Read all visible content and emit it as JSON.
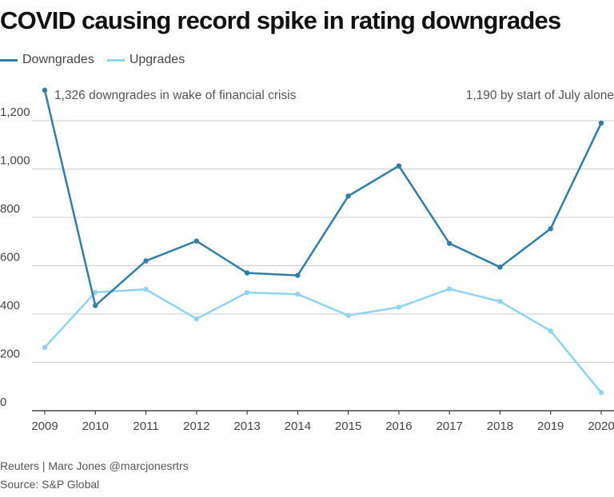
{
  "title": "COVID causing record spike in rating downgrades",
  "legend": [
    {
      "label": "Downgrades",
      "color": "#2f7ea8"
    },
    {
      "label": "Upgrades",
      "color": "#8fd3f4"
    }
  ],
  "annotations": {
    "left": "1,326 downgrades in wake of financial crisis",
    "right": "1,190 by start of July alone"
  },
  "footer": {
    "credit": "Reuters | Marc Jones @marcjonesrtrs",
    "source": "Source: S&P Global"
  },
  "chart_data": {
    "type": "line",
    "title": "COVID causing record spike in rating downgrades",
    "xlabel": "",
    "ylabel": "",
    "x": [
      "2009",
      "2010",
      "2011",
      "2012",
      "2013",
      "2014",
      "2015",
      "2016",
      "2017",
      "2018",
      "2019",
      "2020"
    ],
    "series": [
      {
        "name": "Downgrades",
        "color": "#2f7ea8",
        "values": [
          1326,
          435,
          620,
          702,
          570,
          560,
          888,
          1013,
          692,
          594,
          753,
          1190
        ]
      },
      {
        "name": "Upgrades",
        "color": "#8fd3f4",
        "values": [
          262,
          490,
          502,
          380,
          489,
          482,
          394,
          428,
          504,
          452,
          330,
          75
        ]
      }
    ],
    "ylim": [
      0,
      1400
    ],
    "yticks": [
      0,
      200,
      400,
      600,
      800,
      1000,
      1200
    ],
    "ytick_labels": [
      "0",
      "200",
      "400",
      "600",
      "800",
      "1,000",
      "1,200"
    ],
    "grid": true,
    "legend_position": "top-left"
  }
}
